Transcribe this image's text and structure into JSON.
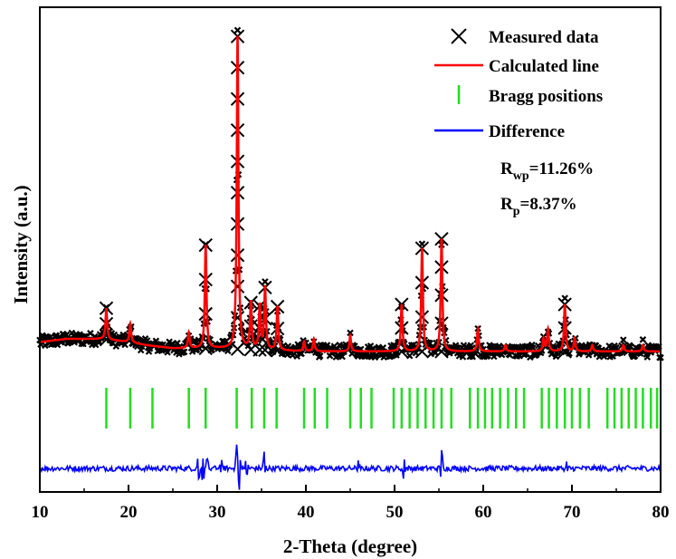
{
  "chart_data": {
    "type": "line",
    "title": "",
    "xlabel": "2-Theta (degree)",
    "ylabel": "Intensity (a.u.)",
    "xlim": [
      10,
      80
    ],
    "xticks": [
      10,
      20,
      30,
      40,
      50,
      60,
      70,
      80
    ],
    "y_units": "arbitrary",
    "ylim": [
      -0.6,
      1.0
    ],
    "grid": false,
    "legend_position": "top-right",
    "legend": [
      {
        "label": "Measured data",
        "marker": "x",
        "color": "#000000"
      },
      {
        "label": "Calculated line",
        "marker": "line",
        "color": "#ff0000"
      },
      {
        "label": "Bragg positions",
        "marker": "tick",
        "color": "#22dd22"
      },
      {
        "label": "Difference",
        "marker": "line",
        "color": "#0000ff"
      }
    ],
    "annotations": {
      "rwp": {
        "base": "R",
        "sub": "wp",
        "value": "=11.26%"
      },
      "rp": {
        "base": "R",
        "sub": "p",
        "value": "=8.37%"
      }
    },
    "background_points": [
      [
        10,
        0.01
      ],
      [
        13,
        0.02
      ],
      [
        17,
        0.02
      ],
      [
        20,
        0.01
      ],
      [
        22,
        0.0
      ],
      [
        25,
        -0.01
      ],
      [
        30,
        -0.01
      ],
      [
        40,
        -0.02
      ],
      [
        50,
        -0.02
      ],
      [
        60,
        -0.02
      ],
      [
        70,
        -0.02
      ],
      [
        80,
        -0.02
      ]
    ],
    "peaks": [
      {
        "two_theta": 17.5,
        "intensity": 0.1
      },
      {
        "two_theta": 20.2,
        "intensity": 0.06
      },
      {
        "two_theta": 26.8,
        "intensity": 0.05
      },
      {
        "two_theta": 28.7,
        "intensity": 0.33
      },
      {
        "two_theta": 32.3,
        "intensity": 1.0
      },
      {
        "two_theta": 33.8,
        "intensity": 0.15
      },
      {
        "two_theta": 34.8,
        "intensity": 0.14
      },
      {
        "two_theta": 35.4,
        "intensity": 0.2
      },
      {
        "two_theta": 36.8,
        "intensity": 0.14
      },
      {
        "two_theta": 39.8,
        "intensity": 0.03
      },
      {
        "two_theta": 40.9,
        "intensity": 0.04
      },
      {
        "two_theta": 45.0,
        "intensity": 0.05
      },
      {
        "two_theta": 50.8,
        "intensity": 0.15
      },
      {
        "two_theta": 53.1,
        "intensity": 0.33
      },
      {
        "two_theta": 55.3,
        "intensity": 0.36
      },
      {
        "two_theta": 59.4,
        "intensity": 0.07
      },
      {
        "two_theta": 62.5,
        "intensity": 0.02
      },
      {
        "two_theta": 66.8,
        "intensity": 0.04
      },
      {
        "two_theta": 67.3,
        "intensity": 0.07
      },
      {
        "two_theta": 69.2,
        "intensity": 0.15
      },
      {
        "two_theta": 70.3,
        "intensity": 0.04
      },
      {
        "two_theta": 72.3,
        "intensity": 0.02
      },
      {
        "two_theta": 75.8,
        "intensity": 0.02
      },
      {
        "two_theta": 78.0,
        "intensity": 0.02
      }
    ],
    "bragg_positions": [
      17.5,
      20.2,
      22.7,
      26.8,
      28.7,
      32.2,
      33.9,
      35.3,
      36.7,
      39.8,
      41.0,
      42.4,
      45.0,
      46.2,
      47.4,
      49.9,
      50.8,
      51.7,
      52.6,
      53.5,
      54.4,
      55.3,
      56.4,
      58.5,
      59.4,
      60.2,
      61.0,
      61.9,
      62.8,
      63.7,
      64.6,
      66.6,
      67.4,
      68.3,
      69.2,
      70.0,
      70.9,
      71.9,
      74.0,
      74.8,
      75.6,
      76.4,
      77.2,
      78.0,
      78.9,
      79.6
    ],
    "difference_spikes": [
      {
        "two_theta": 27.9,
        "value": 0.06
      },
      {
        "two_theta": 28.4,
        "value": -0.05
      },
      {
        "two_theta": 28.9,
        "value": 0.04
      },
      {
        "two_theta": 30.5,
        "value": 0.03
      },
      {
        "two_theta": 32.2,
        "value": 0.08
      },
      {
        "two_theta": 32.5,
        "value": -0.07
      },
      {
        "two_theta": 33.3,
        "value": 0.04
      },
      {
        "two_theta": 35.3,
        "value": 0.05
      },
      {
        "two_theta": 51.0,
        "value": 0.05
      },
      {
        "two_theta": 55.3,
        "value": 0.06
      },
      {
        "two_theta": 45.9,
        "value": 0.02
      },
      {
        "two_theta": 69.4,
        "value": 0.02
      }
    ]
  }
}
